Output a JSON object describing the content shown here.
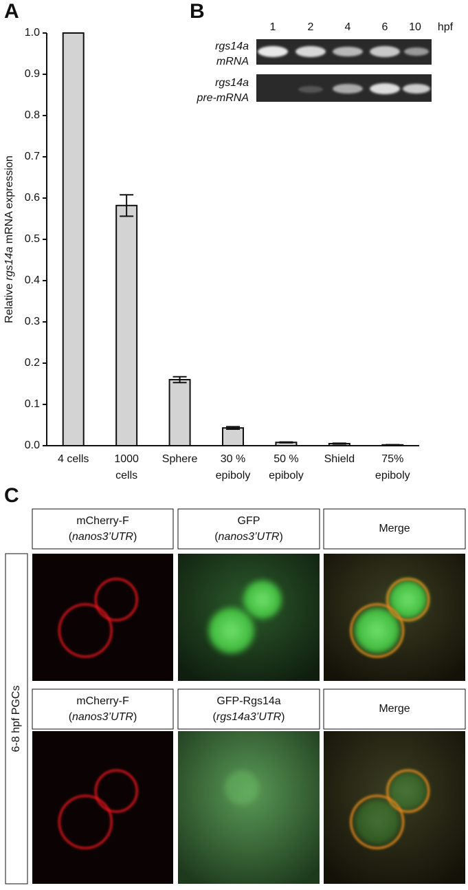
{
  "chart_data": {
    "type": "bar",
    "panel_label": "A",
    "y_label": [
      "Relative ",
      "rgs14a",
      " mRNA expression"
    ],
    "categories": [
      [
        "4 cells"
      ],
      [
        "1000",
        "cells"
      ],
      [
        "Sphere"
      ],
      [
        "30 %",
        "epiboly"
      ],
      [
        "50 %",
        "epiboly"
      ],
      [
        "Shield"
      ],
      [
        "75%",
        "epiboly"
      ]
    ],
    "values": [
      1.0,
      0.582,
      0.16,
      0.043,
      0.008,
      0.005,
      0.002
    ],
    "errors": [
      0,
      0.026,
      0.007,
      0.003,
      0.001,
      0.001,
      0.0005
    ],
    "color": "#d3d3d3",
    "ylim": [
      0,
      1.0
    ],
    "yticks": [
      {
        "value": 0,
        "label": "0.0"
      },
      0.1,
      0.2,
      0.3,
      0.4,
      0.5,
      0.6,
      0.7,
      0.8,
      0.9,
      {
        "value": 1.0,
        "label": "1.0"
      }
    ]
  },
  "panel_b": {
    "label": "B",
    "lanes": [
      "1",
      "2",
      "4",
      "6",
      "10"
    ],
    "unit": "hpf",
    "rows": [
      [
        "rgs14a",
        "mRNA"
      ],
      [
        "rgs14a",
        "pre-mRNA"
      ]
    ]
  },
  "panel_c": {
    "label": "C",
    "side_label": "6-8 hpf PGCs",
    "rows": [
      {
        "headers": [
          {
            "line1": "mCherry-F",
            "line2": [
              "(",
              "nanos3’UTR",
              ")"
            ]
          },
          {
            "line1": "GFP",
            "line2": [
              "(",
              "nanos3’UTR",
              ")"
            ]
          },
          {
            "line1": "Merge"
          }
        ]
      },
      {
        "headers": [
          {
            "line1": "mCherry-F",
            "line2": [
              "(",
              "nanos3’UTR",
              ")"
            ]
          },
          {
            "line1": "GFP-Rgs14a",
            "line2": [
              "(",
              "rgs14a3’UTR",
              ")"
            ]
          },
          {
            "line1": "Merge"
          }
        ]
      }
    ]
  }
}
